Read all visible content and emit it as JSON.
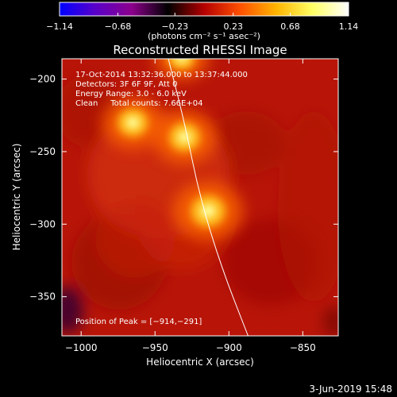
{
  "chart_data": {
    "type": "heatmap",
    "title": "Reconstructed RHESSI Image",
    "xlabel": "Heliocentric X (arcsec)",
    "ylabel": "Heliocentric Y (arcsec)",
    "xlim": [
      -1013,
      -826
    ],
    "ylim": [
      -377,
      -186
    ],
    "x_ticks": [
      -1000,
      -950,
      -900,
      -850
    ],
    "y_ticks": [
      -350,
      -300,
      -250,
      -200
    ],
    "x_tick_labels": [
      "−1000",
      "−950",
      "−900",
      "−850"
    ],
    "y_tick_labels": [
      "−350",
      "−300",
      "−250",
      "−200"
    ],
    "colorbar": {
      "min": -1.14,
      "max": 1.14,
      "ticks": [
        -1.14,
        -0.68,
        -0.23,
        0.23,
        0.68,
        1.14
      ],
      "tick_labels": [
        "−1.14",
        "−0.68",
        "−0.23",
        "0.23",
        "0.68",
        "1.14"
      ],
      "label": "(photons cm⁻² s⁻¹ asec⁻²)",
      "colormap": [
        "#0000ff",
        "#5a00c8",
        "#8c008c",
        "#000000",
        "#b40000",
        "#ff5000",
        "#ffb400",
        "#ffff64",
        "#ffffff"
      ]
    },
    "annotations": {
      "line1": "17-Oct-2014 13:32:36.000 to 13:37:44.000",
      "line2": "Detectors: 3F 6F 9F, Att 0",
      "line3": "Energy Range: 3.0 - 6.0 keV",
      "line4": "Clean     Total counts: 7.66E+04",
      "peak": "Position of Peak = [−914,−291]"
    },
    "sources": [
      {
        "x": -914,
        "y": -291,
        "intensity": 1.14
      },
      {
        "x": -930,
        "y": -240,
        "intensity": 0.95
      },
      {
        "x": -965,
        "y": -230,
        "intensity": 0.9
      },
      {
        "x": -932,
        "y": -185,
        "intensity": 0.7
      }
    ],
    "limb_curve": [
      [
        -941,
        -186
      ],
      [
        -930,
        -230
      ],
      [
        -920,
        -280
      ],
      [
        -905,
        -330
      ],
      [
        -887,
        -377
      ]
    ]
  },
  "footer": {
    "date": "3-Jun-2019 15:48"
  },
  "colors": {
    "background": "#000000",
    "text": "#ffffff"
  }
}
